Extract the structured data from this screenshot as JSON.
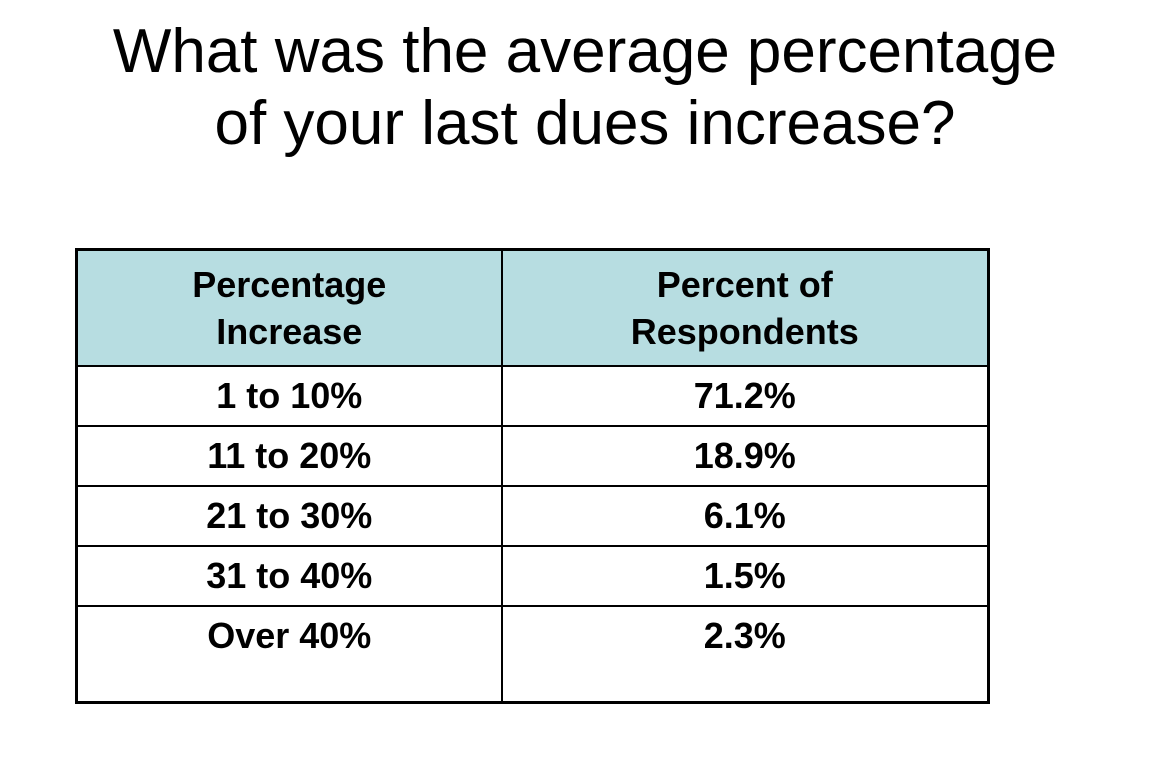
{
  "title": {
    "line1": "What was the average percentage",
    "line2": "of your last dues increase?"
  },
  "chart_data": {
    "type": "table",
    "title": "What was the average percentage of your last dues increase?",
    "columns": [
      [
        "Percentage",
        "Increase"
      ],
      [
        "Percent of",
        "Respondents"
      ]
    ],
    "rows": [
      [
        "1 to 10%",
        "71.2%"
      ],
      [
        "11 to 20%",
        "18.9%"
      ],
      [
        "21 to 30%",
        "6.1%"
      ],
      [
        "31 to 40%",
        "1.5%"
      ],
      [
        "Over 40%",
        "2.3%"
      ]
    ]
  },
  "colors": {
    "header_background": "#b7dde1",
    "border": "#000000",
    "text": "#000000"
  }
}
